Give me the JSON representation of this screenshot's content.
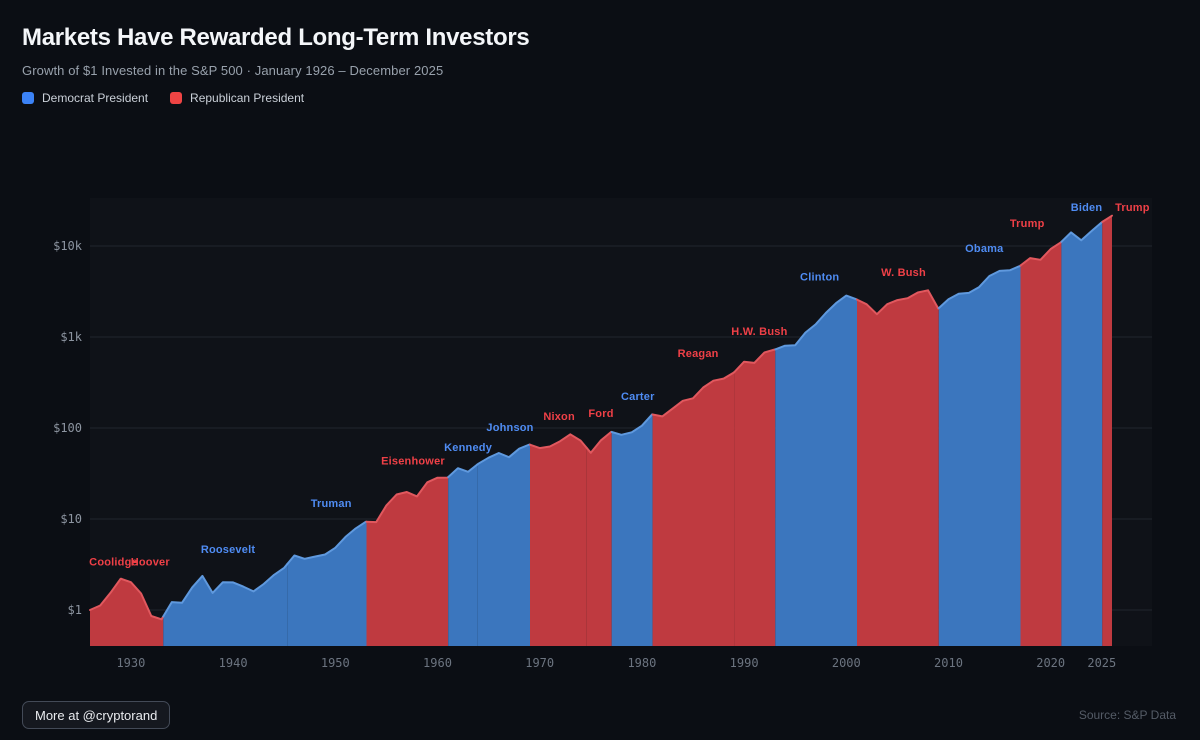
{
  "header": {
    "title": "Markets Have Rewarded Long-Term Investors",
    "subtitle": "Growth of $1 Invested in the S&P 500 · January 1926 – December 2025",
    "legend": [
      {
        "label": "Democrat President",
        "color": "#3b82f6"
      },
      {
        "label": "Republican President",
        "color": "#ef4444"
      }
    ]
  },
  "footer": {
    "credit_button": "More at @cryptorand",
    "source": "Source: S&P Data"
  },
  "chart_data": {
    "type": "area",
    "title": "Growth of $1 Invested in the S&P 500",
    "xlabel": "",
    "ylabel": "",
    "y_scale": "log",
    "x_range": [
      1926,
      2026
    ],
    "grid": "horizontal",
    "legend_position": "top-left-above-chart",
    "series": {
      "name": "Growth of $1",
      "x_start": 1926,
      "x_step": 1,
      "values": [
        1.0,
        1.12,
        1.54,
        2.21,
        2.02,
        1.52,
        0.86,
        0.79,
        1.22,
        1.2,
        1.77,
        2.37,
        1.54,
        2.02,
        2.01,
        1.81,
        1.6,
        1.93,
        2.43,
        2.91,
        3.97,
        3.65,
        3.86,
        4.07,
        4.83,
        6.36,
        7.89,
        9.34,
        9.25,
        14.1,
        18.6,
        19.8,
        17.7,
        25.3,
        28.4,
        28.5,
        36.2,
        33.0,
        40.5,
        47.2,
        53.1,
        47.8,
        59.2,
        65.8,
        60.2,
        62.6,
        71.6,
        85.2,
        72.7,
        53.4,
        73.3,
        90.7,
        84.2,
        89.7,
        106,
        141,
        134,
        163,
        199,
        212,
        279,
        331,
        349,
        407,
        535,
        519,
        677,
        728,
        802,
        812,
        1118,
        1375,
        1834,
        2359,
        2854,
        2595,
        2286,
        1781,
        2292,
        2542,
        2666,
        3087,
        3257,
        2052,
        2596,
        2988,
        3051,
        3539,
        4685,
        5327,
        5402,
        6050,
        7369,
        7044,
        9263,
        10968,
        14116,
        11561,
        14601,
        18252,
        21537
      ]
    },
    "presidents": [
      {
        "name": "Coolidge",
        "party": "R",
        "start": 1926.0,
        "end": 1929.08,
        "label": {
          "year": 1928.3,
          "value": 3.4
        }
      },
      {
        "name": "Hoover",
        "party": "R",
        "start": 1929.08,
        "end": 1933.17,
        "label": {
          "year": 1931.9,
          "value": 3.4
        }
      },
      {
        "name": "Roosevelt",
        "party": "D",
        "start": 1933.17,
        "end": 1945.3,
        "label": {
          "year": 1939.5,
          "value": 4.7
        }
      },
      {
        "name": "Truman",
        "party": "D",
        "start": 1945.3,
        "end": 1953.05,
        "label": {
          "year": 1949.6,
          "value": 15
        }
      },
      {
        "name": "Eisenhower",
        "party": "R",
        "start": 1953.05,
        "end": 1961.05,
        "label": {
          "year": 1957.6,
          "value": 44
        }
      },
      {
        "name": "Kennedy",
        "party": "D",
        "start": 1961.05,
        "end": 1963.9,
        "label": {
          "year": 1963.0,
          "value": 62
        }
      },
      {
        "name": "Johnson",
        "party": "D",
        "start": 1963.9,
        "end": 1969.05,
        "label": {
          "year": 1967.1,
          "value": 102
        }
      },
      {
        "name": "Nixon",
        "party": "R",
        "start": 1969.05,
        "end": 1974.6,
        "label": {
          "year": 1971.9,
          "value": 136
        }
      },
      {
        "name": "Ford",
        "party": "R",
        "start": 1974.6,
        "end": 1977.05,
        "label": {
          "year": 1976.0,
          "value": 147
        }
      },
      {
        "name": "Carter",
        "party": "D",
        "start": 1977.05,
        "end": 1981.05,
        "label": {
          "year": 1979.6,
          "value": 225
        }
      },
      {
        "name": "Reagan",
        "party": "R",
        "start": 1981.05,
        "end": 1989.05,
        "label": {
          "year": 1985.5,
          "value": 665
        }
      },
      {
        "name": "H.W. Bush",
        "party": "R",
        "start": 1989.05,
        "end": 1993.05,
        "label": {
          "year": 1991.5,
          "value": 1170
        }
      },
      {
        "name": "Clinton",
        "party": "D",
        "start": 1993.05,
        "end": 2001.05,
        "label": {
          "year": 1997.4,
          "value": 4600
        }
      },
      {
        "name": "W. Bush",
        "party": "R",
        "start": 2001.05,
        "end": 2009.05,
        "label": {
          "year": 2005.6,
          "value": 5200
        }
      },
      {
        "name": "Obama",
        "party": "D",
        "start": 2009.05,
        "end": 2017.05,
        "label": {
          "year": 2013.5,
          "value": 9500
        }
      },
      {
        "name": "Trump",
        "party": "R",
        "start": 2017.05,
        "end": 2021.05,
        "label": {
          "year": 2017.7,
          "value": 17900
        }
      },
      {
        "name": "Biden",
        "party": "D",
        "start": 2021.05,
        "end": 2025.05,
        "label": {
          "year": 2023.5,
          "value": 26900
        }
      },
      {
        "name": "Trump",
        "party": "R",
        "start": 2025.05,
        "end": 2026.0,
        "label": {
          "year": 2028.0,
          "value": 26900
        }
      }
    ],
    "yticks": [
      {
        "value": 1,
        "label": "$1"
      },
      {
        "value": 10,
        "label": "$10"
      },
      {
        "value": 100,
        "label": "$100"
      },
      {
        "value": 1000,
        "label": "$1k"
      },
      {
        "value": 10000,
        "label": "$10k"
      }
    ],
    "xticks": [
      {
        "value": 1930,
        "label": "1930"
      },
      {
        "value": 1940,
        "label": "1940"
      },
      {
        "value": 1950,
        "label": "1950"
      },
      {
        "value": 1960,
        "label": "1960"
      },
      {
        "value": 1970,
        "label": "1970"
      },
      {
        "value": 1980,
        "label": "1980"
      },
      {
        "value": 1990,
        "label": "1990"
      },
      {
        "value": 2000,
        "label": "2000"
      },
      {
        "value": 2010,
        "label": "2010"
      },
      {
        "value": 2020,
        "label": "2020"
      },
      {
        "value": 2025,
        "label": "2025"
      }
    ],
    "colors": {
      "panel": "rgba(255,255,255,0.018)",
      "grid": "rgba(148,163,184,0.14)",
      "democrat": {
        "fill": "#3b76be",
        "stroke": "#5f99de",
        "label": "#4f8cf3"
      },
      "republican": {
        "fill": "#bf3a40",
        "stroke": "#e1585e",
        "label": "#ef4047"
      }
    }
  }
}
